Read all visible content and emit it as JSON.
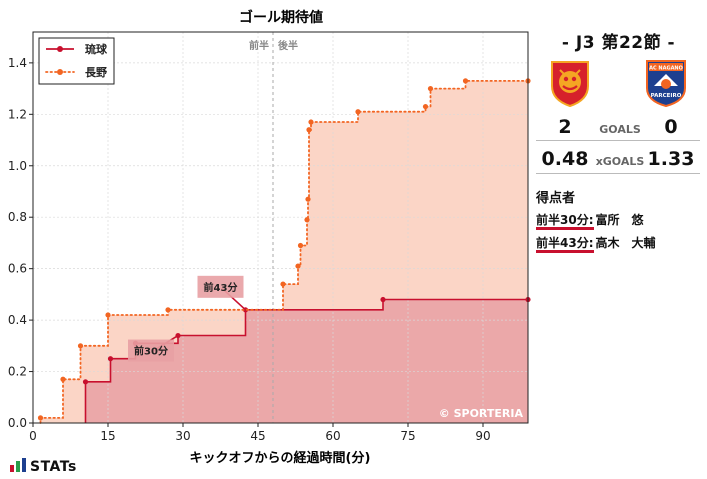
{
  "chart_data": {
    "type": "line",
    "title": "ゴール期待値",
    "xlabel": "キックオフからの経過時間(分)",
    "ylabel": "",
    "xlim": [
      0,
      99
    ],
    "ylim": [
      0,
      1.52
    ],
    "xticks": [
      0,
      15,
      30,
      45,
      60,
      75,
      90
    ],
    "yticks": [
      0.0,
      0.2,
      0.4,
      0.6,
      0.8,
      1.0,
      1.2,
      1.4
    ],
    "ytick_labels": [
      "0.0",
      "0.2",
      "0.4",
      "0.6",
      "0.8",
      "1.0",
      "1.2",
      "1.4"
    ],
    "halftime_minute": 48,
    "halftime_labels": [
      "前半",
      "後半"
    ],
    "legend_position": "top-left",
    "grid": true,
    "watermark": "© SPORTERIA",
    "series": [
      {
        "name": "琉球",
        "color": "#c8102e",
        "fill": "#e8a0a3",
        "style": "solid",
        "points": [
          [
            10.5,
            0.16
          ],
          [
            15.5,
            0.25
          ],
          [
            20.5,
            0.31
          ],
          [
            29,
            0.34
          ],
          [
            42.5,
            0.44
          ],
          [
            70,
            0.48
          ],
          [
            99,
            0.48
          ]
        ]
      },
      {
        "name": "長野",
        "color": "#f26522",
        "fill": "#fbd0c0",
        "style": "dotted",
        "points": [
          [
            1.5,
            0.02
          ],
          [
            6,
            0.17
          ],
          [
            9.5,
            0.3
          ],
          [
            15,
            0.42
          ],
          [
            27,
            0.44
          ],
          [
            50,
            0.54
          ],
          [
            53,
            0.61
          ],
          [
            53.5,
            0.69
          ],
          [
            54.8,
            0.79
          ],
          [
            55,
            0.87
          ],
          [
            55.2,
            1.14
          ],
          [
            55.6,
            1.17
          ],
          [
            65,
            1.21
          ],
          [
            78.5,
            1.23
          ],
          [
            79.5,
            1.3
          ],
          [
            86.5,
            1.33
          ],
          [
            99,
            1.33
          ]
        ]
      }
    ],
    "annotations": [
      {
        "text": "前30分",
        "x": 29,
        "y": 0.34
      },
      {
        "text": "前43分",
        "x": 42.5,
        "y": 0.44
      }
    ]
  },
  "match": {
    "title": "- J3 第22節 -",
    "home_goals": "2",
    "away_goals": "0",
    "goals_label": "GOALS",
    "home_xg": "0.48",
    "away_xg": "1.33",
    "xg_label": "xGOALS",
    "home_crest_color": "#d6212b",
    "away_crest_color": "#f26522",
    "away_crest_text_top": "AC NAGANO",
    "away_crest_text_bottom": "PARCEIRO"
  },
  "scorers": {
    "heading": "得点者",
    "items": [
      {
        "time": "前半30分:",
        "name": "富所　悠"
      },
      {
        "time": "前半43分:",
        "name": "高木　大輔"
      }
    ]
  },
  "brand": {
    "name": "STATs"
  }
}
